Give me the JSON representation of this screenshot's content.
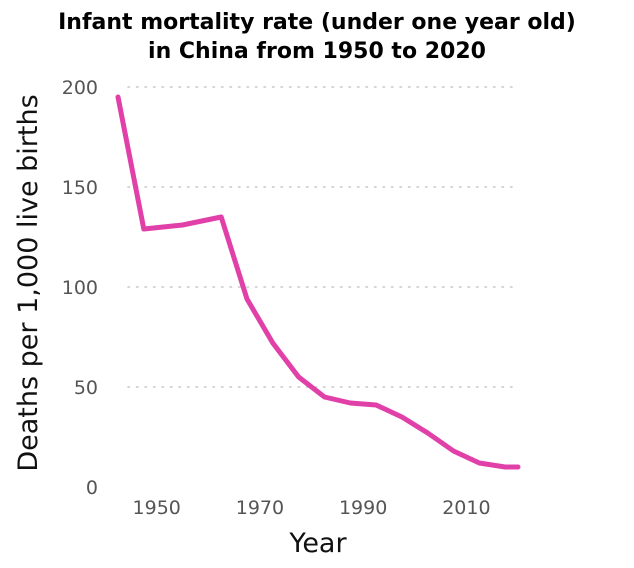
{
  "chart_data": {
    "type": "line",
    "title": "Infant mortality rate (under one year old)",
    "subtitle": "in China from 1950 to 2020",
    "xlabel": "Year",
    "ylabel": "Deaths per 1,000 live births",
    "xlim": [
      1942.5,
      2020
    ],
    "ylim": [
      0,
      200
    ],
    "x_ticks": [
      1950,
      1970,
      1990,
      2010
    ],
    "y_ticks": [
      0,
      50,
      100,
      150,
      200
    ],
    "grid": "horizontal dotted",
    "series": [
      {
        "color": "#e040a8",
        "x": [
          1942.5,
          1947.5,
          1955,
          1962.5,
          1967.5,
          1972.5,
          1977.5,
          1982.5,
          1987.5,
          1992.5,
          1997.5,
          2002.5,
          2007.5,
          2012.5,
          2017.5,
          2020
        ],
        "y": [
          195,
          129,
          131,
          135,
          94,
          72,
          55,
          45,
          42,
          41,
          35,
          27,
          18,
          12,
          10,
          10
        ]
      }
    ]
  }
}
